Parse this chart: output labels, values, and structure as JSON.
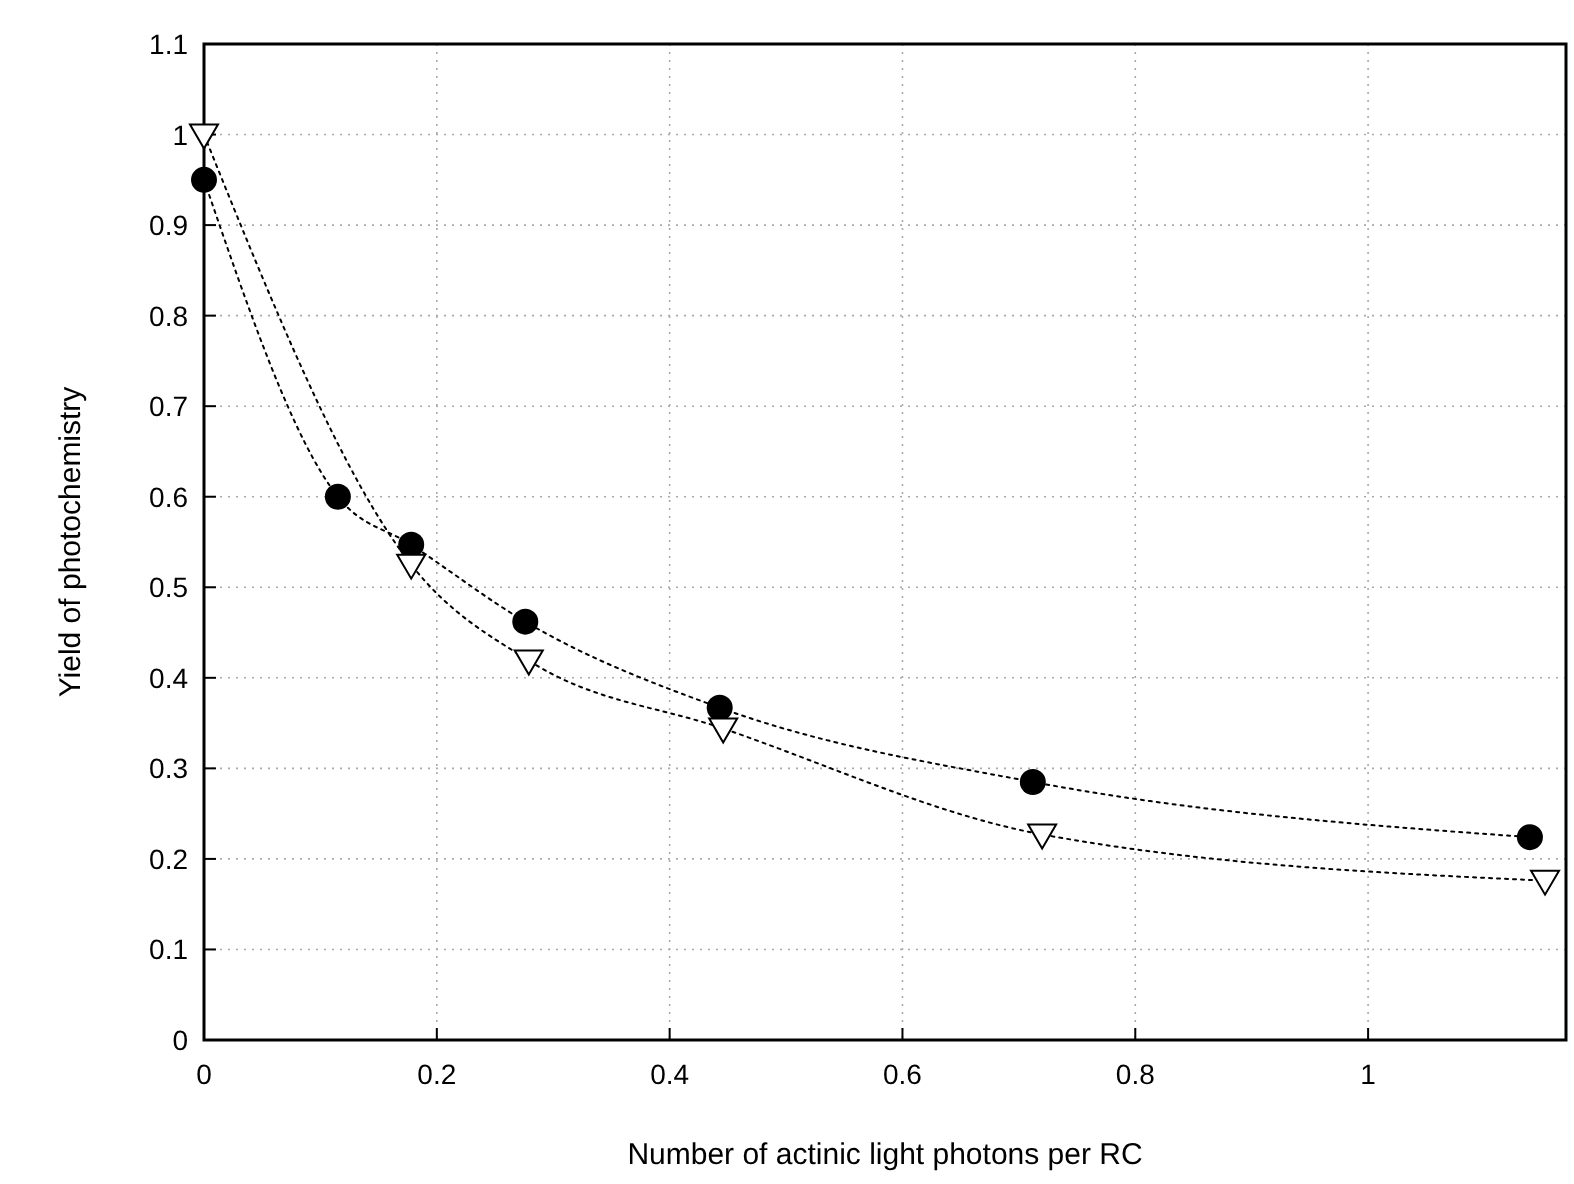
{
  "chart_data": {
    "type": "line",
    "xlabel": "Number of actinic light photons per RC",
    "ylabel": "Yield of photochemistry",
    "xlim": [
      0,
      1.17
    ],
    "xticks": [
      {
        "value": 0,
        "label": "0"
      },
      0.2,
      0.4,
      0.6,
      0.8,
      1
    ],
    "ylim": [
      0,
      1.1
    ],
    "yticks": [
      0,
      0.1,
      0.2,
      0.3,
      0.4,
      0.5,
      0.6,
      0.7,
      0.8,
      0.9,
      1,
      1.1
    ],
    "grid": true,
    "line_style": "dotted",
    "series": [
      {
        "color": "#000000",
        "marker": "circle",
        "x": [
          0,
          0.115,
          0.178,
          0.276,
          0.443,
          0.712,
          1.139
        ],
        "values": [
          0.95,
          0.6,
          0.547,
          0.462,
          0.367,
          0.285,
          0.224
        ]
      },
      {
        "color": "#000000",
        "marker": "triangle",
        "x": [
          0,
          0.178,
          0.279,
          0.446,
          0.72,
          1.152
        ],
        "values": [
          1.0,
          0.525,
          0.419,
          0.344,
          0.227,
          0.176
        ]
      }
    ]
  }
}
